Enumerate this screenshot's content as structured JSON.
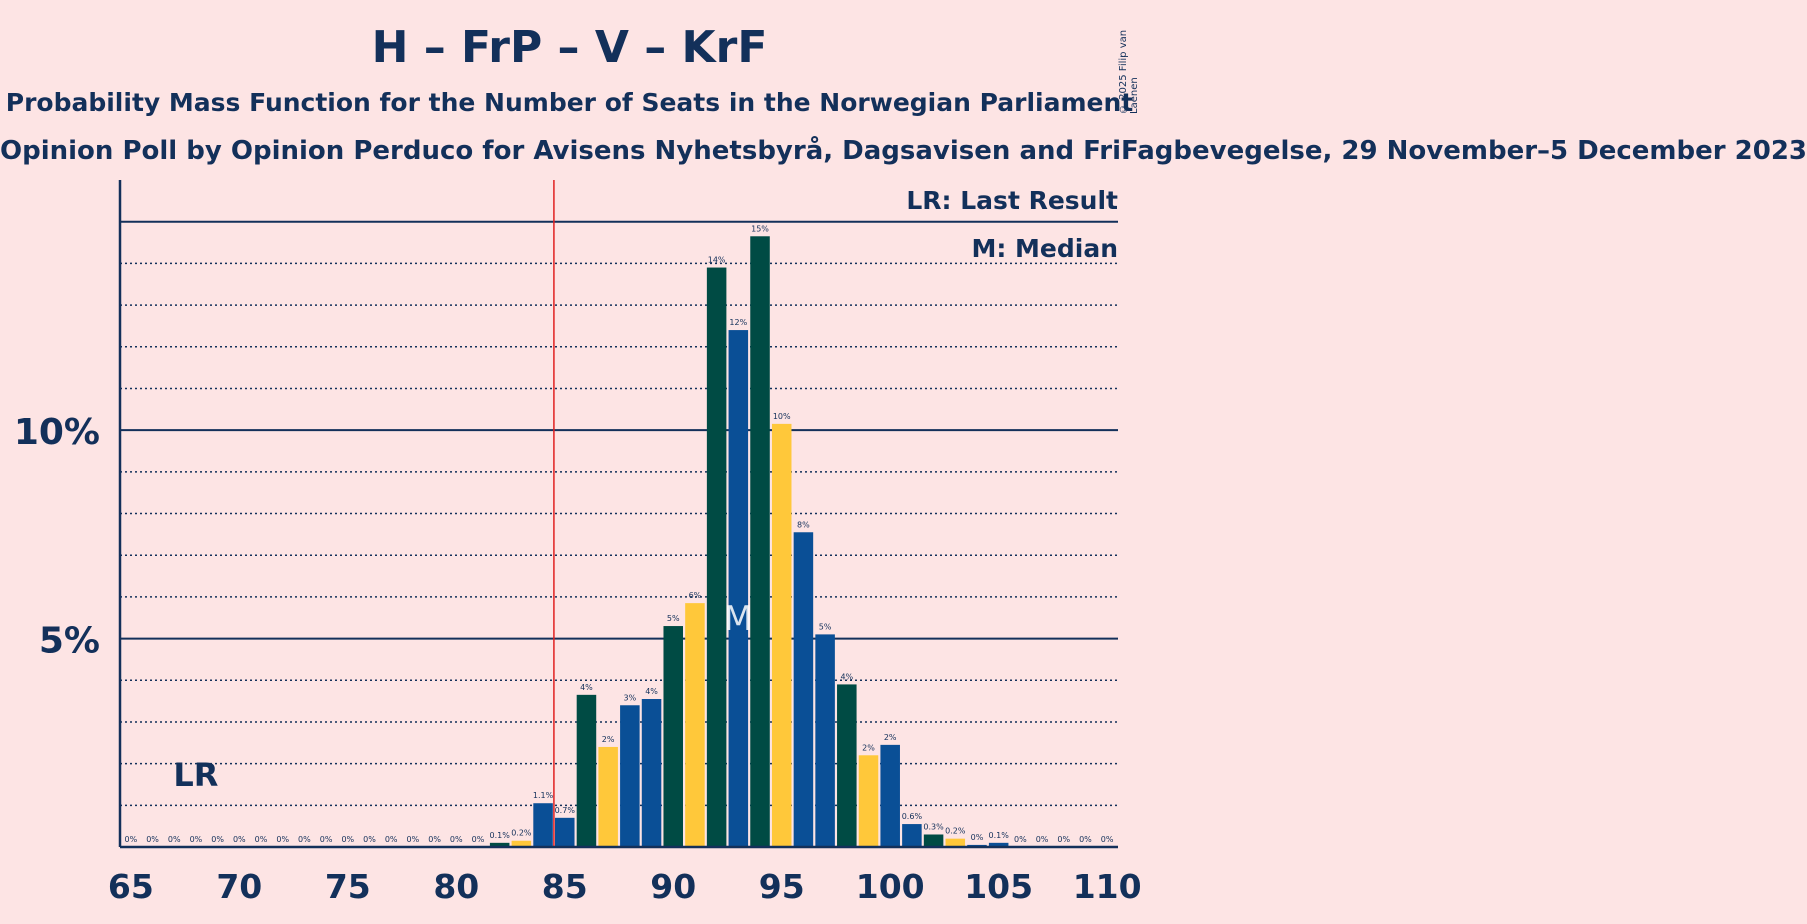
{
  "chart_data": {
    "type": "bar",
    "title": "H – FrP – V – KrF",
    "subtitle": "Probability Mass Function for the Number of Seats in the Norwegian Parliament",
    "poll": "Opinion Poll by Opinion Perduco for Avisens Nyhetsbyrå, Dagsavisen and FriFagbevegelse, 29 November–5 December 2023",
    "copyright": "© 2025 Filip van Laenen",
    "xlim": [
      65,
      110
    ],
    "ylim": [
      0,
      16
    ],
    "x_ticks": [
      65,
      70,
      75,
      80,
      85,
      90,
      95,
      100,
      105,
      110
    ],
    "y_ticks": [
      {
        "value": 5,
        "label": "5%"
      },
      {
        "value": 10,
        "label": "10%"
      }
    ],
    "last_result_seat": 68,
    "majority_line_seat": 84.5,
    "median_seat": 93,
    "legend": {
      "last_result": "LR: Last Result",
      "median": "M: Median"
    },
    "markers": {
      "last_result": "LR",
      "median": "M"
    },
    "colors": {
      "blue": "#0a4f96",
      "yellow": "#ffc83a",
      "green": "#004b44",
      "red_line": "#e02020",
      "axis": "#13305a"
    },
    "x": [
      65,
      66,
      67,
      68,
      69,
      70,
      71,
      72,
      73,
      74,
      75,
      76,
      77,
      78,
      79,
      80,
      81,
      82,
      83,
      84,
      85,
      86,
      87,
      88,
      89,
      90,
      91,
      92,
      93,
      94,
      95,
      96,
      97,
      98,
      99,
      100,
      101,
      102,
      103,
      104,
      105,
      106,
      107,
      108,
      109,
      110
    ],
    "values": [
      0,
      0,
      0,
      0,
      0,
      0,
      0,
      0,
      0,
      0,
      0,
      0,
      0,
      0,
      0,
      0,
      0,
      0.1,
      0.15,
      1.05,
      0.7,
      3.65,
      2.4,
      3.4,
      3.55,
      5.3,
      5.85,
      13.9,
      12.4,
      14.65,
      10.15,
      7.55,
      5.1,
      3.9,
      2.2,
      2.45,
      0.55,
      0.3,
      0.2,
      0.05,
      0.1,
      0,
      0,
      0,
      0,
      0
    ],
    "bar_labels": [
      "0%",
      "0%",
      "0%",
      "0%",
      "0%",
      "0%",
      "0%",
      "0%",
      "0%",
      "0%",
      "0%",
      "0%",
      "0%",
      "0%",
      "0%",
      "0%",
      "0%",
      "0.1%",
      "0.2%",
      "1.1%",
      "0.7%",
      "4%",
      "2%",
      "3%",
      "4%",
      "5%",
      "6%",
      "14%",
      "12%",
      "15%",
      "10%",
      "8%",
      "5%",
      "4%",
      "2%",
      "2%",
      "0.6%",
      "0.3%",
      "0.2%",
      "0%",
      "0.1%",
      "0%",
      "0%",
      "0%",
      "0%",
      "0%"
    ],
    "bar_colors": [
      "blue",
      "blue",
      "blue",
      "blue",
      "blue",
      "blue",
      "blue",
      "blue",
      "blue",
      "blue",
      "blue",
      "blue",
      "blue",
      "blue",
      "blue",
      "blue",
      "blue",
      "green",
      "yellow",
      "blue",
      "blue",
      "green",
      "yellow",
      "blue",
      "blue",
      "green",
      "yellow",
      "green",
      "blue",
      "green",
      "yellow",
      "blue",
      "blue",
      "green",
      "yellow",
      "blue",
      "blue",
      "green",
      "yellow",
      "blue",
      "blue",
      "blue",
      "blue",
      "blue",
      "blue",
      "blue"
    ]
  }
}
